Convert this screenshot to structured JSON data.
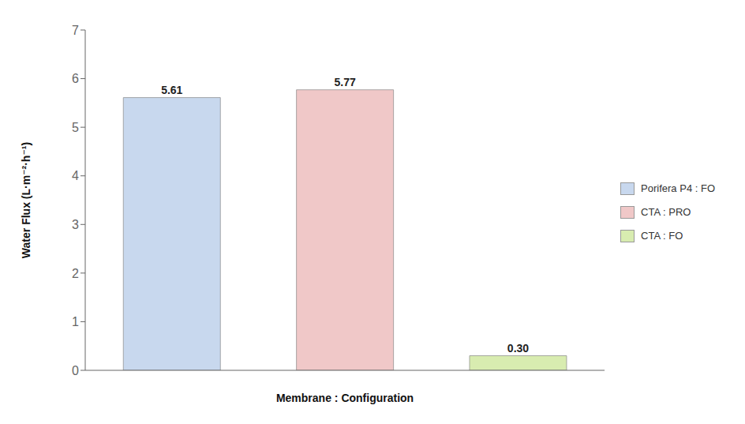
{
  "chart_data": {
    "type": "bar",
    "categories": [
      "Porifera P4 : FO",
      "CTA : PRO",
      "CTA : FO"
    ],
    "values": [
      5.61,
      5.77,
      0.3
    ],
    "value_labels": [
      "5.61",
      "5.77",
      "0.30"
    ],
    "data_labels": true,
    "colors": [
      "#c8d8ee",
      "#f0c8c8",
      "#d8ecb0"
    ],
    "xlabel": "Membrane : Configuration",
    "ylabel": "Water Flux (L·m⁻²·h⁻¹)",
    "ylim": [
      0,
      7
    ],
    "yticks": [
      0,
      1,
      2,
      3,
      4,
      5,
      6,
      7
    ],
    "grid": false,
    "legend": "right",
    "tick_labels": "y"
  }
}
